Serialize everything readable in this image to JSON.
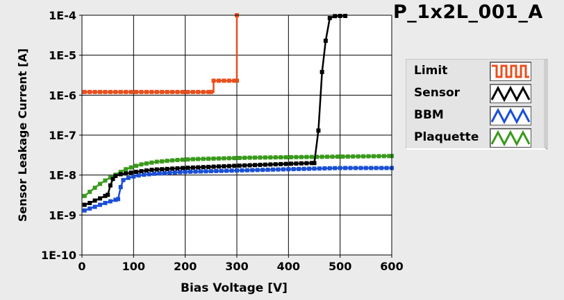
{
  "chart_data": {
    "type": "scatter",
    "title": "P_1x2L_001_A",
    "xlabel": "Bias Voltage [V]",
    "ylabel": "Sensor Leakage Current [A]",
    "xlim": [
      0,
      600
    ],
    "ylim": [
      1e-10,
      0.0001
    ],
    "yscale": "log",
    "grid": true,
    "legend_position": "right",
    "x_ticks": [
      0,
      100,
      200,
      300,
      400,
      500,
      600
    ],
    "x_tick_labels": [
      "0",
      "100",
      "200",
      "300",
      "400",
      "500",
      "600"
    ],
    "y_ticks": [
      1e-10,
      1e-09,
      1e-08,
      1e-07,
      1e-06,
      1e-05,
      0.0001
    ],
    "y_tick_labels": [
      "1E-10",
      "1E-9",
      "1E-8",
      "1E-7",
      "1E-6",
      "1E-5",
      "1E-4"
    ],
    "series": [
      {
        "name": "Limit",
        "color": "#e84e1c",
        "x": [
          5,
          15,
          25,
          35,
          45,
          55,
          65,
          75,
          85,
          95,
          105,
          115,
          125,
          135,
          145,
          155,
          165,
          175,
          185,
          195,
          205,
          215,
          225,
          235,
          245,
          250,
          255,
          265,
          275,
          285,
          295,
          300,
          300
        ],
        "y": [
          1.2e-06,
          1.2e-06,
          1.2e-06,
          1.2e-06,
          1.2e-06,
          1.2e-06,
          1.2e-06,
          1.2e-06,
          1.2e-06,
          1.2e-06,
          1.2e-06,
          1.2e-06,
          1.2e-06,
          1.2e-06,
          1.2e-06,
          1.2e-06,
          1.2e-06,
          1.2e-06,
          1.2e-06,
          1.2e-06,
          1.2e-06,
          1.2e-06,
          1.2e-06,
          1.2e-06,
          1.2e-06,
          1.2e-06,
          2.3e-06,
          2.3e-06,
          2.3e-06,
          2.3e-06,
          2.3e-06,
          2.3e-06,
          0.0001
        ]
      },
      {
        "name": "Sensor",
        "color": "#000000",
        "x": [
          5,
          15,
          25,
          35,
          45,
          50,
          55,
          60,
          65,
          75,
          85,
          95,
          105,
          115,
          125,
          135,
          145,
          155,
          165,
          175,
          185,
          195,
          205,
          215,
          225,
          235,
          245,
          255,
          265,
          275,
          285,
          295,
          305,
          315,
          325,
          335,
          345,
          355,
          365,
          375,
          385,
          395,
          405,
          415,
          425,
          435,
          445,
          450,
          458,
          465,
          472,
          480,
          490,
          500,
          510
        ],
        "y": [
          1.8e-09,
          2e-09,
          2.3e-09,
          2.6e-09,
          3e-09,
          3.2e-09,
          5.5e-09,
          8e-09,
          9.5e-09,
          1.05e-08,
          1.1e-08,
          1.15e-08,
          1.2e-08,
          1.25e-08,
          1.3e-08,
          1.35e-08,
          1.38e-08,
          1.4e-08,
          1.42e-08,
          1.45e-08,
          1.47e-08,
          1.5e-08,
          1.52e-08,
          1.54e-08,
          1.56e-08,
          1.58e-08,
          1.6e-08,
          1.62e-08,
          1.64e-08,
          1.66e-08,
          1.68e-08,
          1.7e-08,
          1.72e-08,
          1.74e-08,
          1.76e-08,
          1.78e-08,
          1.8e-08,
          1.82e-08,
          1.84e-08,
          1.86e-08,
          1.88e-08,
          1.9e-08,
          1.92e-08,
          1.94e-08,
          1.96e-08,
          1.98e-08,
          2e-08,
          2e-08,
          1.3e-07,
          3.8e-06,
          2.3e-05,
          8.5e-05,
          9.5e-05,
          9.6e-05,
          9.6e-05
        ]
      },
      {
        "name": "BBM",
        "color": "#1a4fd6",
        "x": [
          5,
          15,
          25,
          35,
          45,
          55,
          65,
          70,
          75,
          80,
          90,
          100,
          110,
          120,
          130,
          140,
          150,
          160,
          170,
          180,
          190,
          200,
          210,
          220,
          230,
          240,
          250,
          260,
          270,
          280,
          290,
          300,
          310,
          320,
          330,
          340,
          350,
          360,
          370,
          380,
          390,
          400,
          410,
          420,
          430,
          440,
          450,
          460,
          470,
          480,
          490,
          500,
          510,
          520,
          530,
          540,
          550,
          560,
          570,
          580,
          590,
          600
        ],
        "y": [
          1.3e-09,
          1.45e-09,
          1.6e-09,
          1.8e-09,
          2e-09,
          2.2e-09,
          2.4e-09,
          2.5e-09,
          5e-09,
          7.5e-09,
          8.5e-09,
          9.2e-09,
          9.8e-09,
          1.02e-08,
          1.05e-08,
          1.08e-08,
          1.1e-08,
          1.12e-08,
          1.14e-08,
          1.16e-08,
          1.18e-08,
          1.2e-08,
          1.21e-08,
          1.22e-08,
          1.23e-08,
          1.24e-08,
          1.25e-08,
          1.26e-08,
          1.27e-08,
          1.28e-08,
          1.29e-08,
          1.3e-08,
          1.31e-08,
          1.32e-08,
          1.33e-08,
          1.34e-08,
          1.35e-08,
          1.36e-08,
          1.37e-08,
          1.38e-08,
          1.39e-08,
          1.4e-08,
          1.41e-08,
          1.42e-08,
          1.43e-08,
          1.44e-08,
          1.45e-08,
          1.46e-08,
          1.47e-08,
          1.48e-08,
          1.49e-08,
          1.5e-08,
          1.5e-08,
          1.5e-08,
          1.5e-08,
          1.5e-08,
          1.5e-08,
          1.5e-08,
          1.5e-08,
          1.5e-08,
          1.5e-08,
          1.5e-08
        ]
      },
      {
        "name": "Plaquette",
        "color": "#3a9a1c",
        "x": [
          5,
          15,
          25,
          35,
          45,
          55,
          65,
          75,
          85,
          95,
          105,
          115,
          125,
          135,
          145,
          155,
          165,
          175,
          185,
          195,
          205,
          215,
          225,
          235,
          245,
          255,
          265,
          275,
          285,
          295,
          305,
          315,
          325,
          335,
          345,
          355,
          365,
          375,
          385,
          395,
          405,
          415,
          425,
          435,
          445,
          455,
          465,
          475,
          485,
          495,
          505,
          515,
          525,
          535,
          545,
          555,
          565,
          575,
          585,
          595,
          600
        ],
        "y": [
          3e-09,
          3.8e-09,
          4.8e-09,
          6e-09,
          7.3e-09,
          8.7e-09,
          1.02e-08,
          1.2e-08,
          1.4e-08,
          1.55e-08,
          1.7e-08,
          1.85e-08,
          1.95e-08,
          2.05e-08,
          2.15e-08,
          2.2e-08,
          2.27e-08,
          2.33e-08,
          2.38e-08,
          2.42e-08,
          2.46e-08,
          2.5e-08,
          2.52e-08,
          2.54e-08,
          2.56e-08,
          2.58e-08,
          2.6e-08,
          2.62e-08,
          2.64e-08,
          2.66e-08,
          2.68e-08,
          2.7e-08,
          2.72e-08,
          2.73e-08,
          2.74e-08,
          2.75e-08,
          2.76e-08,
          2.77e-08,
          2.78e-08,
          2.79e-08,
          2.8e-08,
          2.81e-08,
          2.82e-08,
          2.83e-08,
          2.84e-08,
          2.85e-08,
          2.86e-08,
          2.87e-08,
          2.88e-08,
          2.89e-08,
          2.9e-08,
          2.91e-08,
          2.92e-08,
          2.93e-08,
          2.94e-08,
          2.95e-08,
          2.96e-08,
          2.97e-08,
          2.98e-08,
          2.99e-08,
          3e-08
        ]
      }
    ]
  }
}
